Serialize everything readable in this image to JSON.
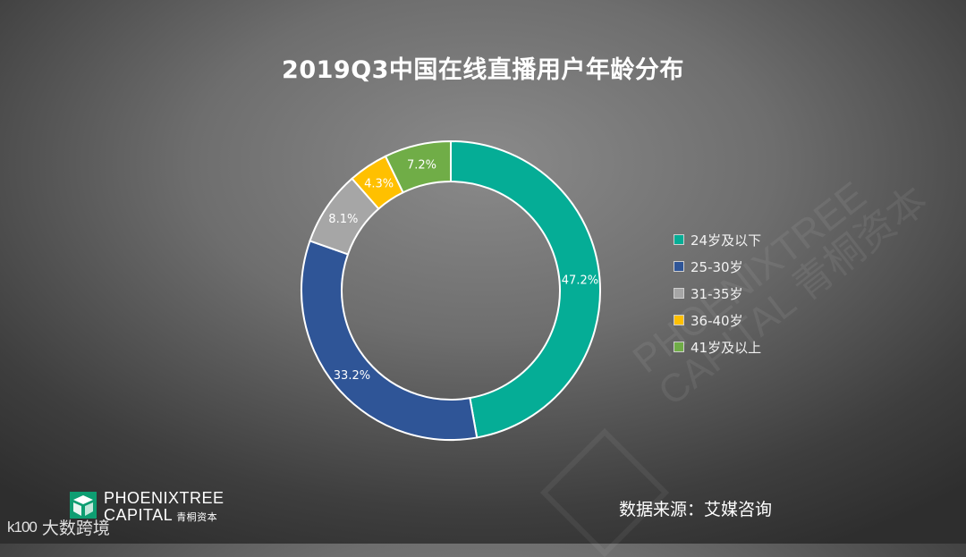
{
  "title": "2019Q3中国在线直播用户年龄分布",
  "chart_data": {
    "type": "pie",
    "subtype": "donut",
    "title": "2019Q3中国在线直播用户年龄分布",
    "legend_position": "right",
    "series": [
      {
        "name": "24岁及以下",
        "value": 47.2,
        "label": "47.2%",
        "color": "#05ad96"
      },
      {
        "name": "25-30岁",
        "value": 33.2,
        "label": "33.2%",
        "color": "#2f5597"
      },
      {
        "name": "31-35岁",
        "value": 8.1,
        "label": "8.1%",
        "color": "#a6a6a6"
      },
      {
        "name": "36-40岁",
        "value": 4.3,
        "label": "4.3%",
        "color": "#ffc000"
      },
      {
        "name": "41岁及以上",
        "value": 7.2,
        "label": "7.2%",
        "color": "#70ad47"
      }
    ]
  },
  "source": "数据来源：艾媒咨询",
  "brand": {
    "line1": "PHOENIXTREE",
    "line2": "CAPITAL",
    "line2_cn": "青桐资本"
  },
  "watermark": {
    "line1": "PHOENIXTREE",
    "line2": "CAPITAL 青桐资本"
  },
  "corner_brand": {
    "mark": "k100",
    "text": "大数跨境"
  }
}
